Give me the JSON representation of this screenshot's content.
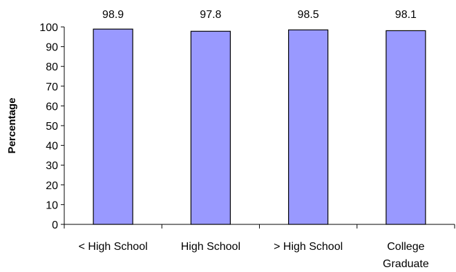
{
  "chart_data": {
    "type": "bar",
    "title": "",
    "xlabel": "",
    "ylabel": "Percentage",
    "ylim": [
      0,
      100
    ],
    "yticks": [
      0,
      10,
      20,
      30,
      40,
      50,
      60,
      70,
      80,
      90,
      100
    ],
    "categories": [
      "< High School",
      "High School",
      "> High School",
      "College Graduate"
    ],
    "category_lines": [
      [
        "< High School"
      ],
      [
        "High School"
      ],
      [
        "> High School"
      ],
      [
        "College",
        "Graduate"
      ]
    ],
    "values": [
      98.9,
      97.8,
      98.5,
      98.1
    ],
    "value_labels": [
      "98.9",
      "97.8",
      "98.5",
      "98.1"
    ],
    "bar_color": "#9999ff",
    "bar_stroke": "#000000",
    "grid": false,
    "legend": "none"
  }
}
